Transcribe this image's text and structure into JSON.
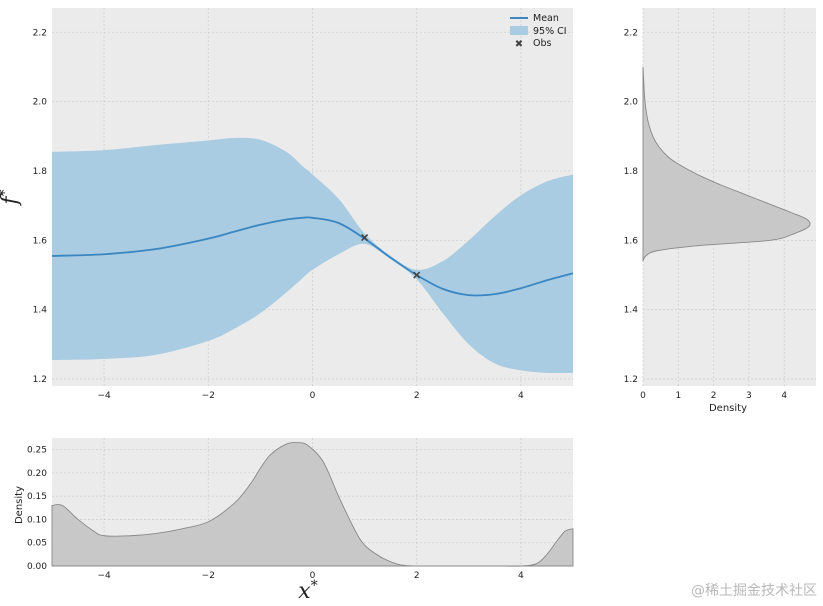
{
  "chart_data": [
    {
      "type": "line",
      "panel": "main",
      "xlabel": "",
      "ylabel": "f*",
      "xlim": [
        -5,
        5
      ],
      "ylim": [
        1.18,
        2.27
      ],
      "xticks": [
        -4,
        -2,
        0,
        2,
        4
      ],
      "yticks": [
        1.2,
        1.4,
        1.6,
        1.8,
        2.0,
        2.2
      ],
      "grid": true,
      "legend": {
        "placement": "top-right",
        "entries": [
          "Mean",
          "95% CI",
          "Obs"
        ]
      },
      "x": [
        -5,
        -4,
        -3,
        -2,
        -1.5,
        -1,
        -0.5,
        -0.2,
        0,
        0.5,
        1,
        1.5,
        2,
        2.5,
        3,
        3.5,
        4,
        4.5,
        5
      ],
      "mean": [
        1.555,
        1.56,
        1.575,
        1.605,
        1.625,
        1.645,
        1.66,
        1.665,
        1.665,
        1.65,
        1.605,
        1.55,
        1.5,
        1.46,
        1.442,
        1.445,
        1.462,
        1.485,
        1.505
      ],
      "upper": [
        1.855,
        1.86,
        1.875,
        1.888,
        1.895,
        1.89,
        1.855,
        1.815,
        1.79,
        1.72,
        1.62,
        1.555,
        1.515,
        1.54,
        1.6,
        1.67,
        1.73,
        1.77,
        1.79
      ],
      "lower": [
        1.255,
        1.258,
        1.27,
        1.31,
        1.345,
        1.39,
        1.45,
        1.49,
        1.515,
        1.56,
        1.59,
        1.545,
        1.488,
        1.39,
        1.3,
        1.245,
        1.225,
        1.218,
        1.218
      ],
      "observations": [
        {
          "x": 1.0,
          "y": 1.608
        },
        {
          "x": 2.0,
          "y": 1.5
        }
      ]
    },
    {
      "type": "area",
      "panel": "right-marginal",
      "xlabel": "Density",
      "ylabel": "",
      "xlim": [
        0,
        4.9
      ],
      "ylim": [
        1.18,
        2.27
      ],
      "xticks": [
        0,
        1,
        2,
        3,
        4
      ],
      "yticks": [
        1.2,
        1.4,
        1.6,
        1.8,
        2.0,
        2.2
      ],
      "grid": true,
      "y": [
        1.54,
        1.555,
        1.57,
        1.585,
        1.6,
        1.62,
        1.64,
        1.66,
        1.68,
        1.7,
        1.72,
        1.74,
        1.76,
        1.78,
        1.8,
        1.82,
        1.84,
        1.87,
        1.9,
        1.94,
        1.98,
        2.02,
        2.06,
        2.1
      ],
      "density": [
        0,
        0.08,
        0.4,
        1.6,
        3.6,
        4.3,
        4.7,
        4.65,
        4.2,
        3.7,
        3.2,
        2.7,
        2.2,
        1.75,
        1.35,
        1.0,
        0.72,
        0.45,
        0.28,
        0.15,
        0.08,
        0.04,
        0.02,
        0
      ]
    },
    {
      "type": "area",
      "panel": "bottom-marginal",
      "xlabel": "x*",
      "ylabel": "Density",
      "xlim": [
        -5,
        5
      ],
      "ylim": [
        0,
        0.275
      ],
      "xticks": [
        -4,
        -2,
        0,
        2,
        4
      ],
      "yticks": [
        0.0,
        0.05,
        0.1,
        0.15,
        0.2,
        0.25
      ],
      "grid": true,
      "x": [
        -5,
        -4.8,
        -4.5,
        -4.2,
        -4,
        -3.5,
        -3,
        -2.5,
        -2,
        -1.5,
        -1.2,
        -1,
        -0.8,
        -0.5,
        -0.3,
        -0.1,
        0.2,
        0.5,
        0.8,
        1,
        1.3,
        1.6,
        1.8,
        2,
        2.5,
        3,
        3.5,
        4,
        4.3,
        4.5,
        4.7,
        4.85,
        5
      ],
      "density": [
        0.13,
        0.13,
        0.1,
        0.075,
        0.065,
        0.065,
        0.07,
        0.08,
        0.095,
        0.135,
        0.175,
        0.21,
        0.24,
        0.262,
        0.265,
        0.26,
        0.225,
        0.15,
        0.08,
        0.045,
        0.02,
        0.005,
        0.001,
        0,
        0,
        0,
        0,
        0,
        0.005,
        0.025,
        0.055,
        0.075,
        0.08
      ]
    }
  ],
  "labels": {
    "main_ylabel_base": "f",
    "main_ylabel_sup": "*",
    "bottom_xlabel_base": "x",
    "bottom_xlabel_sup": "*",
    "bottom_ylabel": "Density",
    "right_xlabel": "Density",
    "legend_mean": "Mean",
    "legend_ci": "95% CI",
    "legend_obs": "Obs"
  },
  "watermark": "@稀土掘金技术社区",
  "colors": {
    "panel_bg": "#ebebeb",
    "grid": "#cfcfcf",
    "mean": "#3a86c0",
    "ci": "#a9cce3",
    "obs": "#444444",
    "density_fill": "#c8c8c8",
    "density_line": "#888888"
  }
}
